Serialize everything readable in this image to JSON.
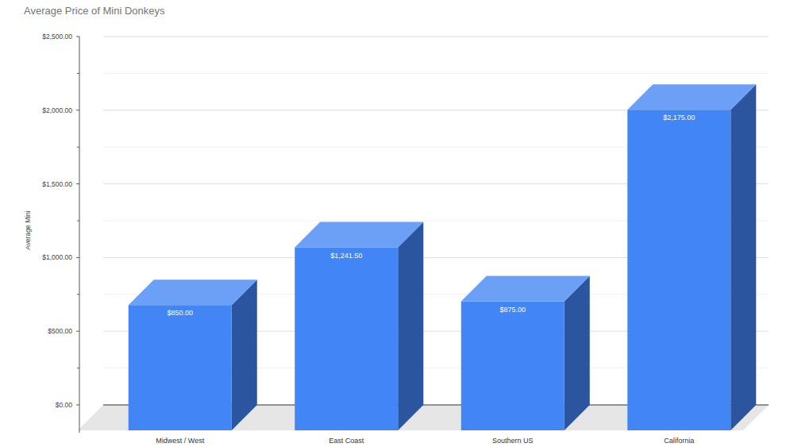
{
  "chart_data": {
    "type": "bar",
    "title": "Average Price of Mini Donkeys",
    "y_label": "Average Mini",
    "categories": [
      "Midwest / West",
      "East Coast",
      "Southern US",
      "California"
    ],
    "values": [
      850,
      1241.5,
      875,
      2175
    ],
    "value_labels": [
      "$850.00",
      "$1,241.50",
      "$875.00",
      "$2,175.00"
    ],
    "color": "#4285f4",
    "ylim": [
      0,
      2500
    ],
    "yticks": [
      {
        "value": 0,
        "label": "$0.00"
      },
      {
        "value": 500,
        "label": "$500.00"
      },
      {
        "value": 1000,
        "label": "$1,000.00"
      },
      {
        "value": 1500,
        "label": "$1,500.00"
      },
      {
        "value": 2000,
        "label": "$2,000.00"
      },
      {
        "value": 2500,
        "label": "$2,500.00"
      }
    ],
    "grid": true,
    "data_labels": true
  }
}
